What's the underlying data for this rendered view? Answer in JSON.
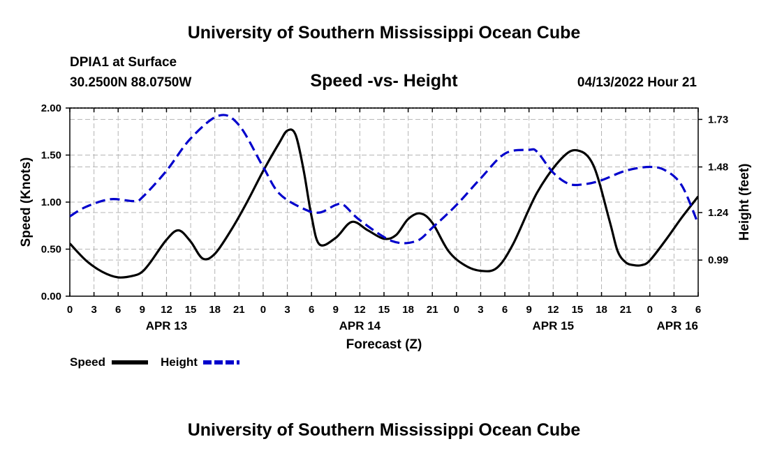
{
  "header": {
    "title": "University of Southern Mississippi Ocean Cube",
    "station": "DPIA1 at Surface",
    "coords": "30.2500N  88.0750W",
    "chart_title": "Speed -vs- Height",
    "timestamp": "04/13/2022 Hour 21"
  },
  "footer": {
    "title": "University of Southern Mississippi Ocean Cube"
  },
  "chart_data": {
    "type": "line",
    "title": "Speed -vs- Height",
    "xlabel": "Forecast (Z)",
    "ylabel": "Speed (Knots)",
    "y2label": "Height (feet)",
    "grid": true,
    "x_unit": "forecast hours from APR 13 00Z",
    "xlim": [
      0,
      78
    ],
    "ylim": [
      0,
      2
    ],
    "y2lim": [
      0.8,
      1.79
    ],
    "x_ticks": [
      0,
      3,
      6,
      9,
      12,
      15,
      18,
      21,
      24,
      27,
      30,
      33,
      36,
      39,
      42,
      45,
      48,
      51,
      54,
      57,
      60,
      63,
      66,
      69,
      72,
      75,
      78
    ],
    "x_tick_labels": [
      "0",
      "3",
      "6",
      "9",
      "12",
      "15",
      "18",
      "21",
      "0",
      "3",
      "6",
      "9",
      "12",
      "15",
      "18",
      "21",
      "0",
      "3",
      "6",
      "9",
      "12",
      "15",
      "18",
      "21",
      "0",
      "3",
      "6"
    ],
    "date_labels": [
      {
        "label": "APR 13",
        "x": 12
      },
      {
        "label": "APR 14",
        "x": 36
      },
      {
        "label": "APR 15",
        "x": 60
      },
      {
        "label": "APR 16",
        "x": 78
      }
    ],
    "y_ticks": [
      0,
      0.5,
      1,
      1.5,
      2
    ],
    "y_tick_labels": [
      "0.00",
      "0.50",
      "1.00",
      "1.50",
      "2.00"
    ],
    "y2_ticks": [
      0.99,
      1.24,
      1.48,
      1.73
    ],
    "y2_tick_labels": [
      "0.99",
      "1.24",
      "1.48",
      "1.73"
    ],
    "series": [
      {
        "name": "Speed",
        "axis": "left",
        "color": "#000000",
        "dash": "solid",
        "x": [
          0,
          2,
          4,
          6,
          8,
          9,
          10,
          12,
          13.5,
          15,
          16.5,
          18,
          20,
          22,
          24,
          26,
          27,
          28,
          29,
          30,
          31,
          33,
          35,
          37,
          39,
          40.5,
          42,
          43.5,
          45,
          47,
          49,
          51,
          53,
          55,
          58,
          61,
          63,
          65,
          67,
          68,
          69,
          70,
          71,
          72,
          74,
          76,
          78
        ],
        "y": [
          0.56,
          0.38,
          0.26,
          0.2,
          0.22,
          0.26,
          0.36,
          0.6,
          0.7,
          0.58,
          0.4,
          0.45,
          0.7,
          1.0,
          1.33,
          1.63,
          1.76,
          1.72,
          1.35,
          0.85,
          0.55,
          0.62,
          0.79,
          0.7,
          0.61,
          0.65,
          0.82,
          0.88,
          0.78,
          0.48,
          0.33,
          0.27,
          0.3,
          0.55,
          1.1,
          1.46,
          1.55,
          1.39,
          0.8,
          0.48,
          0.36,
          0.33,
          0.33,
          0.38,
          0.6,
          0.84,
          1.06
        ]
      },
      {
        "name": "Height",
        "axis": "right",
        "color": "#0000cc",
        "dash": "dashed",
        "x": [
          0,
          2,
          5,
          8,
          9,
          12,
          15,
          18.5,
          21,
          24,
          26,
          29,
          31,
          33,
          34,
          36,
          40,
          43,
          45,
          48,
          51,
          54,
          57,
          58,
          60,
          62,
          64,
          66,
          69,
          72,
          74,
          76,
          78
        ],
        "y": [
          1.22,
          1.27,
          1.31,
          1.3,
          1.32,
          1.46,
          1.63,
          1.75,
          1.7,
          1.48,
          1.34,
          1.26,
          1.24,
          1.28,
          1.28,
          1.2,
          1.09,
          1.09,
          1.16,
          1.28,
          1.42,
          1.55,
          1.57,
          1.56,
          1.45,
          1.39,
          1.39,
          1.41,
          1.46,
          1.48,
          1.46,
          1.38,
          1.18
        ]
      }
    ],
    "legend": [
      "Speed",
      "Height"
    ],
    "legend_position": "bottom-left"
  }
}
